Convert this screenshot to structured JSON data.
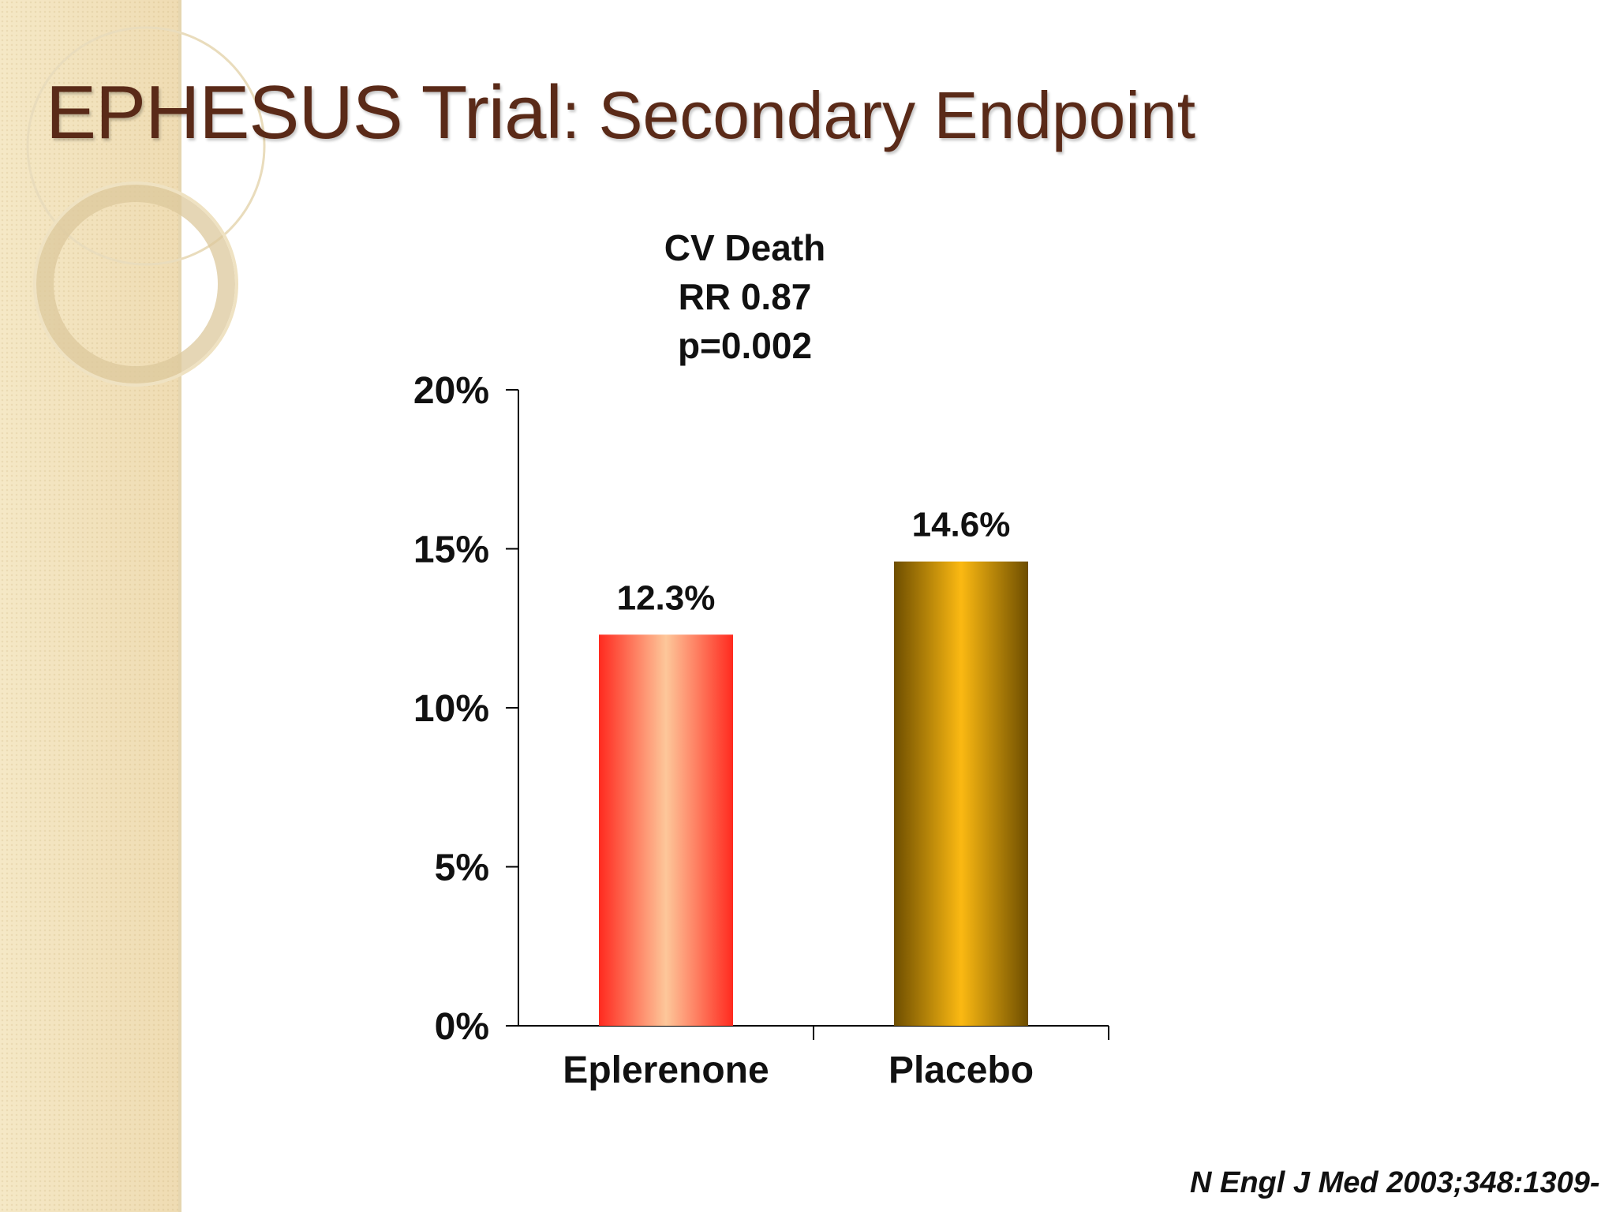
{
  "slide": {
    "title_main": "EPHESUS Trial",
    "title_sub": ": Secondary Endpoint",
    "citation": "N Engl J Med 2003;348:1309-"
  },
  "colors": {
    "title": "#5a2a18",
    "bar_eplerenone_edge": "#ff2a1f",
    "bar_eplerenone_center": "#fdc79a",
    "bar_placebo_edge": "#6e4e00",
    "bar_placebo_center": "#fbb912"
  },
  "chart_data": {
    "type": "bar",
    "annotation": [
      "CV Death",
      "RR 0.87",
      "p=0.002"
    ],
    "categories": [
      "Eplerenone",
      "Placebo"
    ],
    "values": [
      12.3,
      14.6
    ],
    "value_labels": [
      "12.3%",
      "14.6%"
    ],
    "yticks": [
      0,
      5,
      10,
      15,
      20
    ],
    "ytick_labels": [
      "0%",
      "5%",
      "10%",
      "15%",
      "20%"
    ],
    "ylim": [
      0,
      20
    ],
    "grid": false,
    "legend": "none"
  }
}
